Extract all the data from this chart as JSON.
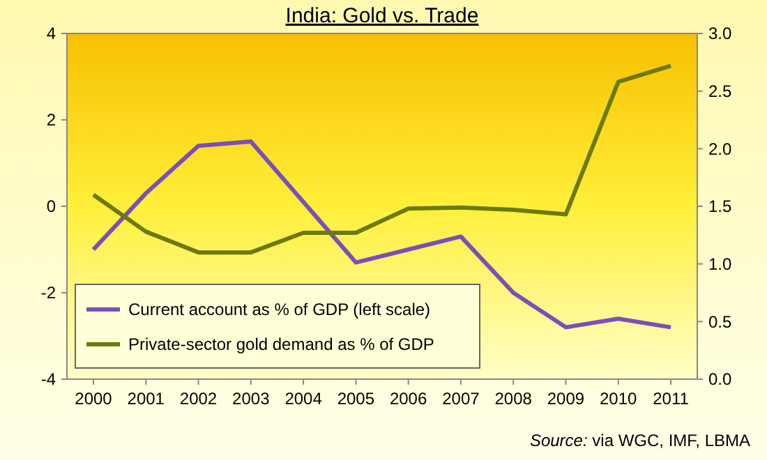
{
  "chart_data": {
    "type": "line",
    "title": "India: Gold vs. Trade",
    "categories": [
      "2000",
      "2001",
      "2002",
      "2003",
      "2004",
      "2005",
      "2006",
      "2007",
      "2008",
      "2009",
      "2010",
      "2011"
    ],
    "series": [
      {
        "name": "Current account as % of GDP (left scale)",
        "color": "#7b4fb8",
        "values": [
          -1.0,
          0.3,
          1.4,
          1.5,
          0.1,
          -1.3,
          -1.0,
          -0.7,
          -2.0,
          -2.8,
          -2.6,
          -2.8
        ]
      },
      {
        "name": "Private-sector gold demand as % of GDP",
        "color": "#6b7a0c",
        "axis": "y2",
        "values": [
          1.6,
          1.28,
          1.1,
          1.1,
          1.27,
          1.27,
          1.48,
          1.49,
          1.47,
          1.43,
          2.58,
          2.72
        ]
      }
    ],
    "ylim": [
      -4,
      4
    ],
    "yticks": [
      -4,
      -2,
      0,
      2,
      4
    ],
    "y2lim": [
      0,
      3
    ],
    "y2ticks": [
      {
        "value": 0,
        "label": "0.0"
      },
      {
        "value": 0.5,
        "label": "0.5"
      },
      {
        "value": 1,
        "label": "1.0"
      },
      {
        "value": 1.5,
        "label": "1.5"
      },
      {
        "value": 2,
        "label": "2.0"
      },
      {
        "value": 2.5,
        "label": "2.5"
      },
      {
        "value": 3,
        "label": "3.0"
      }
    ],
    "legend": "bottom left",
    "grid": false,
    "marker": "none",
    "line_style": "solid",
    "annotations": [
      "Source: via WGC, IMF, LBMA"
    ]
  }
}
